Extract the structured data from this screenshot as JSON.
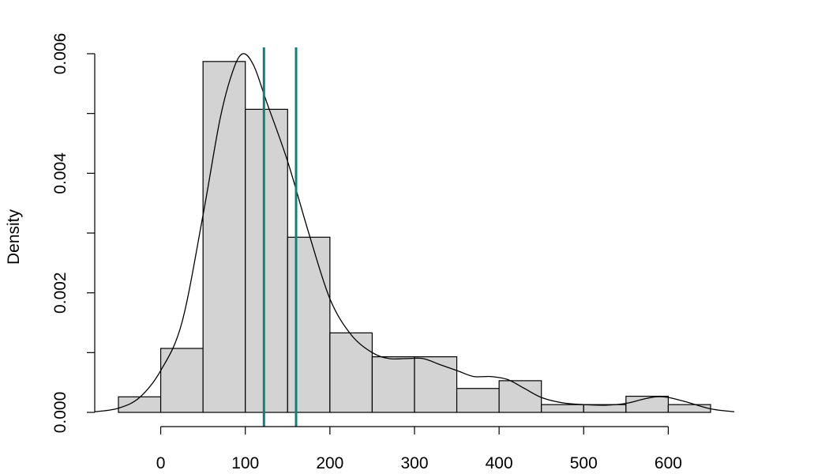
{
  "chart_data": {
    "type": "histogram",
    "title": "",
    "xlabel": "",
    "ylabel": "Density",
    "xlim": [
      -78,
      678
    ],
    "ylim": [
      0,
      0.006
    ],
    "grid": false,
    "x_ticks": [
      0,
      100,
      200,
      300,
      400,
      500,
      600
    ],
    "x_tick_labels": [
      "0",
      "100",
      "200",
      "300",
      "400",
      "500",
      "600"
    ],
    "y_ticks": [
      0,
      0.001,
      0.002,
      0.003,
      0.004,
      0.005,
      0.006
    ],
    "y_tick_labels": [
      "0.000",
      "",
      "0.002",
      "",
      "0.004",
      "",
      "0.006"
    ],
    "bins": [
      {
        "start": -50,
        "end": 0,
        "density": 0.00026
      },
      {
        "start": 0,
        "end": 50,
        "density": 0.00107
      },
      {
        "start": 50,
        "end": 100,
        "density": 0.00587
      },
      {
        "start": 100,
        "end": 150,
        "density": 0.00507
      },
      {
        "start": 150,
        "end": 200,
        "density": 0.00293
      },
      {
        "start": 200,
        "end": 250,
        "density": 0.00133
      },
      {
        "start": 250,
        "end": 300,
        "density": 0.00093
      },
      {
        "start": 300,
        "end": 350,
        "density": 0.00093
      },
      {
        "start": 350,
        "end": 400,
        "density": 0.0004
      },
      {
        "start": 400,
        "end": 450,
        "density": 0.00053
      },
      {
        "start": 450,
        "end": 500,
        "density": 0.00013
      },
      {
        "start": 500,
        "end": 550,
        "density": 0.00013
      },
      {
        "start": 550,
        "end": 600,
        "density": 0.00027
      },
      {
        "start": 600,
        "end": 650,
        "density": 0.00013
      }
    ],
    "density_curve": {
      "x": [
        -78,
        -50,
        -25,
        0,
        25,
        50,
        70,
        85,
        97,
        110,
        125,
        150,
        175,
        200,
        225,
        250,
        270,
        290,
        310,
        330,
        350,
        370,
        390,
        410,
        430,
        450,
        475,
        500,
        525,
        550,
        570,
        585,
        600,
        620,
        650,
        678
      ],
      "y": [
        1e-05,
        7e-05,
        0.00025,
        0.0007,
        0.0015,
        0.0033,
        0.0049,
        0.0057,
        0.006,
        0.0058,
        0.0052,
        0.0042,
        0.003,
        0.0019,
        0.0013,
        0.001,
        0.0009,
        0.0009,
        0.0009,
        0.0008,
        0.0007,
        0.0006,
        0.0006,
        0.00055,
        0.0004,
        0.00025,
        0.00016,
        0.00013,
        0.00012,
        0.00015,
        0.00022,
        0.00026,
        0.00025,
        0.00018,
        6e-05,
        1e-05
      ]
    },
    "vertical_lines": [
      {
        "x": 122,
        "color": "#138077"
      },
      {
        "x": 160,
        "color": "#138077"
      }
    ],
    "colors": {
      "bar_fill": "#d3d3d3",
      "bar_stroke": "#000000",
      "curve": "#000000"
    }
  }
}
